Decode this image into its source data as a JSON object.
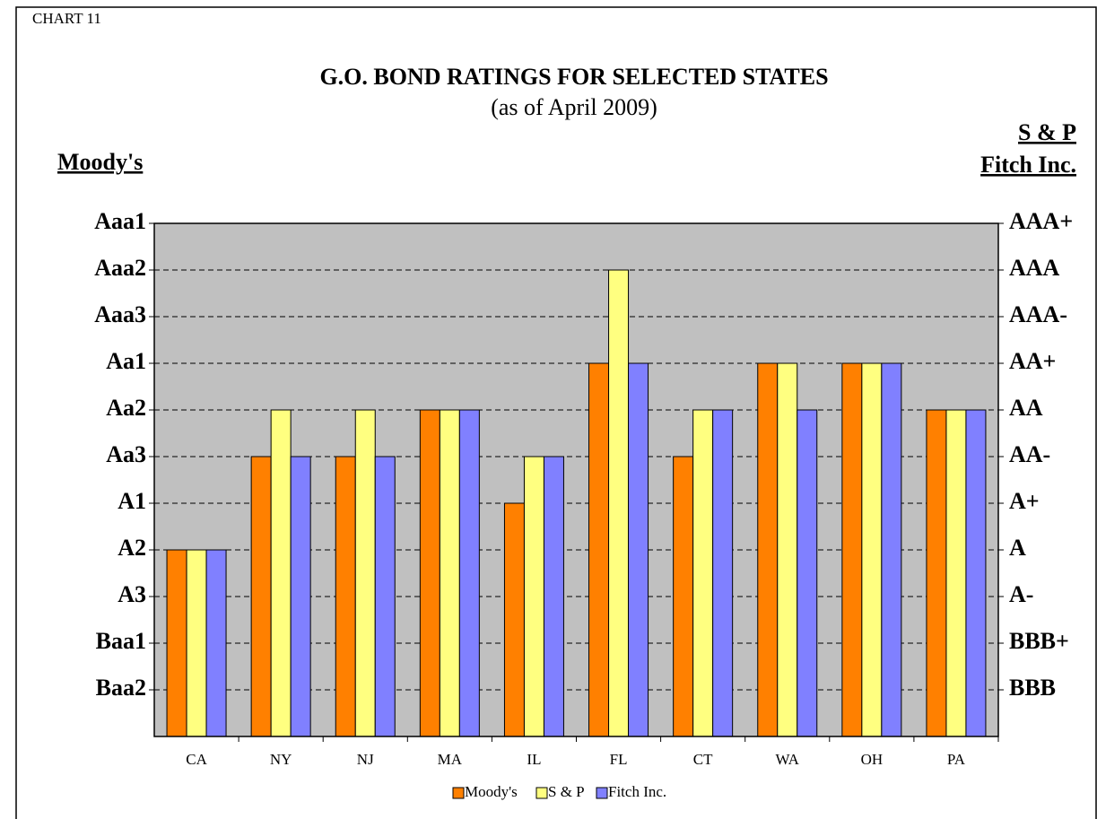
{
  "chart_data": {
    "type": "bar",
    "label": "CHART 11",
    "title": "G.O. BOND RATINGS FOR SELECTED STATES",
    "subtitle": "(as of April 2009)",
    "y_label": "Moody's",
    "y2_label": [
      "S & P",
      "Fitch Inc."
    ],
    "categories": [
      "CA",
      "NY",
      "NJ",
      "MA",
      "IL",
      "FL",
      "CT",
      "WA",
      "OH",
      "PA"
    ],
    "series": [
      {
        "name": "Moody's",
        "color": "#ff8000",
        "values": [
          4,
          6,
          6,
          7,
          5,
          8,
          6,
          8,
          8,
          7
        ]
      },
      {
        "name": "S & P",
        "color": "#ffff80",
        "values": [
          4,
          7,
          7,
          7,
          6,
          10,
          7,
          8,
          8,
          7
        ]
      },
      {
        "name": "Fitch Inc.",
        "color": "#8080ff",
        "values": [
          4,
          6,
          6,
          7,
          6,
          8,
          7,
          7,
          8,
          7
        ]
      }
    ],
    "ylim": [
      0,
      11
    ],
    "yticks": [
      {
        "value": 1,
        "label": "Baa2"
      },
      {
        "value": 2,
        "label": "Baa1"
      },
      {
        "value": 3,
        "label": "A3"
      },
      {
        "value": 4,
        "label": "A2"
      },
      {
        "value": 5,
        "label": "A1"
      },
      {
        "value": 6,
        "label": "Aa3"
      },
      {
        "value": 7,
        "label": "Aa2"
      },
      {
        "value": 8,
        "label": "Aa1"
      },
      {
        "value": 9,
        "label": "Aaa3"
      },
      {
        "value": 10,
        "label": "Aaa2"
      },
      {
        "value": 11,
        "label": "Aaa1"
      }
    ],
    "y2lim": [
      0,
      11
    ],
    "y2ticks": [
      {
        "value": 1,
        "label": "BBB"
      },
      {
        "value": 2,
        "label": "BBB+"
      },
      {
        "value": 3,
        "label": "A-"
      },
      {
        "value": 4,
        "label": "A"
      },
      {
        "value": 5,
        "label": "A+"
      },
      {
        "value": 6,
        "label": "AA-"
      },
      {
        "value": 7,
        "label": "AA"
      },
      {
        "value": 8,
        "label": "AA+"
      },
      {
        "value": 9,
        "label": "AAA-"
      },
      {
        "value": 10,
        "label": "AAA"
      },
      {
        "value": 11,
        "label": "AAA+"
      }
    ],
    "grid": true,
    "plot_background": "#c0c0c0",
    "legend": "bottom"
  }
}
